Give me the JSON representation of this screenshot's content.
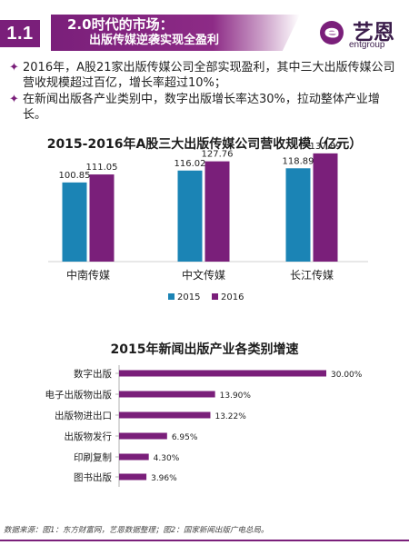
{
  "header": {
    "section": "1.1",
    "title_line1": "2.0时代的市场：",
    "title_line2": "出版传媒逆袭实现全盈利",
    "logo_cn": "艺恩",
    "logo_en": "entgroup",
    "brand_color": "#7a1f7a"
  },
  "bullets": [
    "2016年，A股21家出版传媒公司全部实现盈利，其中三大出版传媒公司营收规模超过百亿，增长率超过10%；",
    "在新闻出版各产业类别中，数字出版增长率达30%，拉动整体产业增长。"
  ],
  "chart_data": [
    {
      "type": "bar",
      "title": "2015-2016年A股三大出版传媒公司营收规模（亿元）",
      "categories": [
        "中南传媒",
        "中文传媒",
        "长江传媒"
      ],
      "series": [
        {
          "name": "2015",
          "values": [
            100.85,
            116.02,
            118.89
          ],
          "color": "#1b84b5"
        },
        {
          "name": "2016",
          "values": [
            111.05,
            127.76,
            137.89
          ],
          "color": "#7a1f7a"
        }
      ],
      "ylim": [
        0,
        150
      ],
      "legend": "bottom",
      "grid": false
    },
    {
      "type": "bar",
      "orientation": "horizontal",
      "title": "2015年新闻出版产业各类别增速",
      "categories": [
        "数字出版",
        "电子出版物出版",
        "出版物进出口",
        "出版物发行",
        "印刷复制",
        "图书出版"
      ],
      "values": [
        30.0,
        13.9,
        13.22,
        6.95,
        4.3,
        3.96
      ],
      "labels": [
        "30.00%",
        "13.90%",
        "13.22%",
        "6.95%",
        "4.30%",
        "3.96%"
      ],
      "unit": "%",
      "xlim": [
        0,
        35
      ],
      "color": "#7a1f7a",
      "grid": false
    }
  ],
  "source": "数据来源：图1：东方财富网，艺恩数据整理；图2：国家新闻出版广电总局。"
}
